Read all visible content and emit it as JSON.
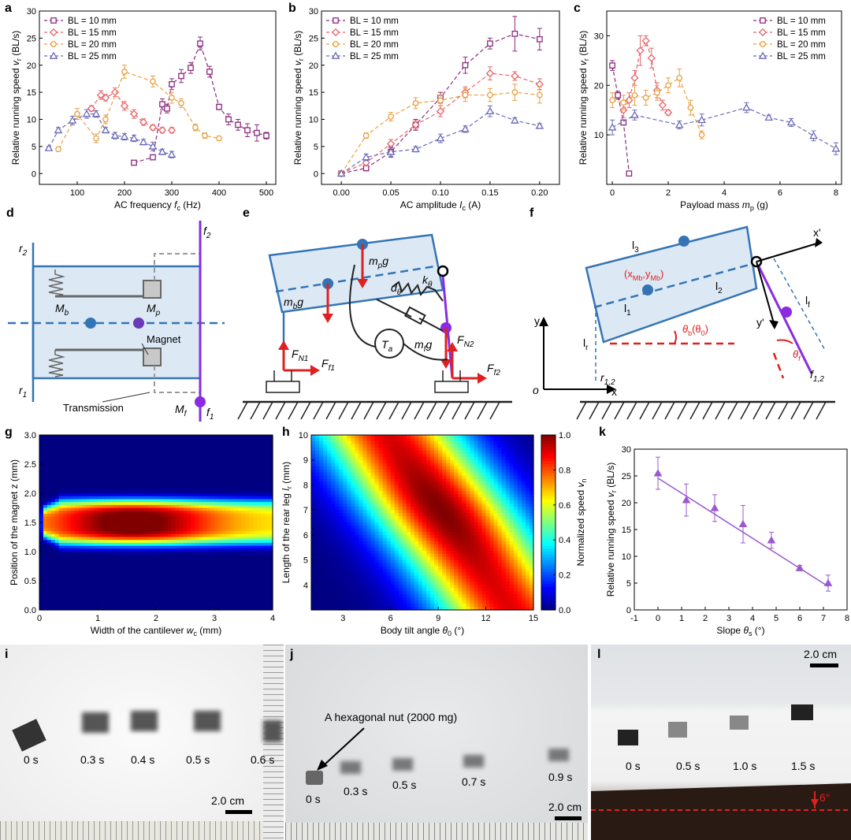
{
  "labels": {
    "a": "a",
    "b": "b",
    "c": "c",
    "d": "d",
    "e": "e",
    "f": "f",
    "g": "g",
    "h": "h",
    "k": "k",
    "i": "i",
    "j": "j",
    "l": "l"
  },
  "colors": {
    "bl10": "#8B2A7E",
    "bl15": "#E8646A",
    "bl20": "#E8A040",
    "bl25": "#6A6AB8",
    "blue": "#3474B4",
    "purple": "#8A2BE2",
    "red": "#E02020",
    "fill": "#dce9f5",
    "line_k": "#9B59D0"
  },
  "chart_data": [
    {
      "id": "a",
      "type": "line",
      "ylabel_main": "Relative running speed ",
      "ylabel_sym": "v",
      "ylabel_sub": "r",
      "ylabel_unit": " (BL/s)",
      "xlabel_main": "AC frequency ",
      "xlabel_sym": "f",
      "xlabel_sub": "c",
      "xlabel_unit": "  (Hz)",
      "xlim": [
        20,
        520
      ],
      "ylim": [
        -2,
        30
      ],
      "xticks": [
        100,
        200,
        300,
        400,
        500
      ],
      "yticks": [
        0,
        5,
        10,
        15,
        20,
        25,
        30
      ],
      "legend": "top-left",
      "series": [
        {
          "name": "BL = 10 mm",
          "color": "#8B2A7E",
          "marker": "square",
          "x": [
            220,
            260,
            280,
            290,
            300,
            320,
            340,
            360,
            380,
            400,
            420,
            440,
            460,
            480,
            500
          ],
          "y": [
            2,
            3,
            12.8,
            12,
            16.5,
            18,
            19.5,
            24,
            18.8,
            12.3,
            10,
            9,
            8,
            7.5,
            7
          ],
          "err": [
            0.3,
            0.4,
            1.0,
            0.8,
            1.0,
            1.2,
            1.0,
            1.2,
            1.0,
            0.5,
            1.0,
            1.0,
            1.2,
            1.5,
            0.6
          ]
        },
        {
          "name": "BL = 15 mm",
          "color": "#E8646A",
          "marker": "diamond",
          "x": [
            130,
            150,
            160,
            180,
            200,
            220,
            240,
            260,
            280,
            300
          ],
          "y": [
            12,
            14.5,
            14,
            15,
            12.5,
            11,
            9.5,
            8.5,
            8,
            8
          ],
          "err": [
            0.5,
            0.8,
            0.6,
            0.8,
            0.8,
            0.8,
            0.6,
            0.5,
            0.5,
            0.5
          ]
        },
        {
          "name": "BL = 20 mm",
          "color": "#E8A040",
          "marker": "circle",
          "x": [
            60,
            100,
            140,
            160,
            200,
            260,
            300,
            320,
            350,
            370,
            400
          ],
          "y": [
            4.5,
            11,
            6.5,
            10,
            18.8,
            17,
            14,
            13,
            8.5,
            7,
            6.5
          ],
          "err": [
            0.4,
            1.0,
            0.8,
            0.8,
            1.2,
            1.0,
            1.0,
            0.8,
            0.6,
            0.5,
            0.4
          ]
        },
        {
          "name": "BL = 25 mm",
          "color": "#6A6AB8",
          "marker": "triangle",
          "x": [
            40,
            60,
            90,
            120,
            140,
            160,
            180,
            200,
            220,
            240,
            260,
            280,
            300
          ],
          "y": [
            4.7,
            8,
            9.8,
            11,
            11,
            8,
            7,
            6.8,
            6.5,
            5.8,
            5,
            4,
            3.5
          ],
          "err": [
            0.3,
            0.5,
            0.8,
            0.8,
            0.6,
            0.5,
            0.6,
            0.6,
            0.6,
            0.5,
            0.8,
            0.5,
            0.6
          ]
        }
      ]
    },
    {
      "id": "b",
      "type": "line",
      "ylabel_main": "Relative running speed ",
      "ylabel_sym": "v",
      "ylabel_sub": "r",
      "ylabel_unit": " (BL/s)",
      "xlabel_main": "AC amplitude ",
      "xlabel_sym": "I",
      "xlabel_sub": "c",
      "xlabel_unit": " (A)",
      "xlim": [
        -0.02,
        0.22
      ],
      "ylim": [
        -2,
        30
      ],
      "xticks": [
        0.0,
        0.05,
        0.1,
        0.15,
        0.2
      ],
      "xtick_labels": [
        "0.00",
        "0.05",
        "0.10",
        "0.15",
        "0.20"
      ],
      "yticks": [
        0,
        5,
        10,
        15,
        20,
        25,
        30
      ],
      "legend": "top-left",
      "series": [
        {
          "name": "BL = 10 mm",
          "color": "#8B2A7E",
          "marker": "square",
          "x": [
            0,
            0.025,
            0.05,
            0.075,
            0.1,
            0.125,
            0.15,
            0.175,
            0.2
          ],
          "y": [
            0,
            1,
            4,
            9,
            14,
            20,
            24,
            25.8,
            24.8
          ],
          "err": [
            0.2,
            0.5,
            1.0,
            1.0,
            1.0,
            1.5,
            1.0,
            3.2,
            2.0
          ]
        },
        {
          "name": "BL = 15 mm",
          "color": "#E8646A",
          "marker": "diamond",
          "x": [
            0,
            0.025,
            0.05,
            0.075,
            0.1,
            0.125,
            0.15,
            0.175,
            0.2
          ],
          "y": [
            0,
            2,
            5.5,
            9,
            11.5,
            15,
            18.5,
            18,
            16.5
          ],
          "err": [
            0.2,
            0.5,
            0.8,
            0.8,
            1.0,
            1.0,
            1.2,
            0.8,
            1.0
          ]
        },
        {
          "name": "BL = 20 mm",
          "color": "#E8A040",
          "marker": "circle",
          "x": [
            0,
            0.025,
            0.05,
            0.075,
            0.1,
            0.125,
            0.15,
            0.175,
            0.2
          ],
          "y": [
            0,
            7,
            10.5,
            13,
            13.5,
            14.5,
            14.5,
            15,
            14.5
          ],
          "err": [
            0.2,
            0.5,
            0.8,
            1.0,
            1.0,
            1.2,
            1.2,
            1.5,
            1.5
          ]
        },
        {
          "name": "BL = 25 mm",
          "color": "#6A6AB8",
          "marker": "triangle",
          "x": [
            0,
            0.025,
            0.05,
            0.075,
            0.1,
            0.125,
            0.15,
            0.175,
            0.2
          ],
          "y": [
            0,
            3,
            4,
            4.5,
            6.5,
            8.2,
            11.5,
            9.8,
            8.8
          ],
          "err": [
            0.2,
            0.6,
            0.8,
            0.5,
            0.8,
            0.6,
            1.0,
            0.5,
            0.4
          ]
        }
      ]
    },
    {
      "id": "c",
      "type": "line",
      "ylabel_main": "Relative running speed ",
      "ylabel_sym": "v",
      "ylabel_sub": "r",
      "ylabel_unit": " (BL/s)",
      "xlabel_main": "Payload mass ",
      "xlabel_sym": "m",
      "xlabel_sub": "p",
      "xlabel_unit": " (g)",
      "xlim": [
        -0.2,
        8.2
      ],
      "ylim": [
        0,
        35
      ],
      "xticks": [
        0,
        2,
        4,
        6,
        8
      ],
      "yticks": [
        10,
        20,
        30
      ],
      "legend": "top-right",
      "series": [
        {
          "name": "BL = 10 mm",
          "color": "#8B2A7E",
          "marker": "square",
          "x": [
            0,
            0.2,
            0.4,
            0.6
          ],
          "y": [
            24,
            18,
            12.5,
            2.2
          ],
          "err": [
            1.0,
            0.8,
            0.5,
            0.2
          ]
        },
        {
          "name": "BL = 15 mm",
          "color": "#E8646A",
          "marker": "diamond",
          "x": [
            0.4,
            0.6,
            0.8,
            1.0,
            1.2,
            1.4,
            1.6,
            1.8,
            2.0
          ],
          "y": [
            15,
            17,
            21.5,
            27,
            29,
            25.5,
            19,
            16,
            14.5
          ],
          "err": [
            1.5,
            1.5,
            1.5,
            3.0,
            1.0,
            2.0,
            1.5,
            1.0,
            0.5
          ]
        },
        {
          "name": "BL = 20 mm",
          "color": "#E8A040",
          "marker": "circle",
          "x": [
            0,
            0.4,
            0.8,
            1.2,
            1.6,
            2.0,
            2.4,
            2.8,
            3.2
          ],
          "y": [
            17,
            16.5,
            18,
            17.5,
            18.5,
            20,
            21.5,
            15.5,
            10
          ],
          "err": [
            1.5,
            1.5,
            2.0,
            1.5,
            1.5,
            1.5,
            1.8,
            1.5,
            0.8
          ]
        },
        {
          "name": "BL = 25 mm",
          "color": "#6A6AB8",
          "marker": "triangle",
          "x": [
            0,
            0.8,
            2.4,
            3.2,
            4.8,
            5.6,
            6.4,
            7.2,
            8.0
          ],
          "y": [
            11.5,
            14,
            12,
            13,
            15.5,
            13.5,
            12.5,
            9.8,
            7.2
          ],
          "err": [
            1.5,
            1.0,
            0.8,
            1.2,
            1.0,
            0.5,
            0.8,
            1.0,
            1.2
          ]
        }
      ]
    },
    {
      "id": "g",
      "type": "heatmap",
      "xlabel_main": "Width of the cantilever ",
      "xlabel_sym": "w",
      "xlabel_sub": "c",
      "xlabel_unit": " (mm)",
      "ylabel": "Position of the magnet z (mm)",
      "xlim": [
        0,
        4
      ],
      "ylim": [
        0,
        3
      ],
      "xticks": [
        0,
        1,
        2,
        3,
        4
      ],
      "yticks": [
        0.0,
        0.5,
        1.0,
        1.5,
        2.0,
        2.5,
        3.0
      ],
      "ytick_labels": [
        "0.0",
        "0.5",
        "1.0",
        "1.5",
        "2.0",
        "2.5",
        "3.0"
      ]
    },
    {
      "id": "h",
      "type": "heatmap",
      "xlabel_main": "Body tilt angle ",
      "xlabel_sym": "θ",
      "xlabel_sub": "0",
      "xlabel_unit": " (°)",
      "ylabel_main": "Length of the rear leg  ",
      "ylabel_sym": "l",
      "ylabel_sub": "r",
      "ylabel_unit": " (mm)",
      "xlim": [
        1,
        15
      ],
      "ylim": [
        3,
        10
      ],
      "xticks": [
        3,
        6,
        9,
        12,
        15
      ],
      "yticks": [
        4,
        5,
        6,
        7,
        8,
        9,
        10
      ],
      "colorbar": {
        "label_main": "Normalized speed ",
        "label_sym": "v",
        "label_sub": "n",
        "ticks": [
          0.0,
          0.2,
          0.4,
          0.6,
          0.8,
          1.0
        ],
        "tick_labels": [
          "0.0",
          "0.2",
          "0.4",
          "0.6",
          "0.8",
          "1.0"
        ]
      }
    },
    {
      "id": "k",
      "type": "line",
      "ylabel_main": "Relative running speed ",
      "ylabel_sym": "v",
      "ylabel_sub": "r",
      "ylabel_unit": " (BL/s)",
      "xlabel_main": "Slope ",
      "xlabel_sym": "θ",
      "xlabel_sub": "s",
      "xlabel_unit": " (°)",
      "xlim": [
        -1,
        8
      ],
      "ylim": [
        0,
        30
      ],
      "xticks": [
        -1,
        0,
        1,
        2,
        3,
        4,
        5,
        6,
        7,
        8
      ],
      "yticks": [
        0,
        5,
        10,
        15,
        20,
        25,
        30
      ],
      "series": [
        {
          "name": "",
          "color": "#9B59D0",
          "marker": "triangle",
          "x": [
            0,
            1.2,
            2.4,
            3.6,
            4.8,
            6.0,
            7.2
          ],
          "y": [
            25.5,
            20.5,
            19,
            16,
            13,
            7.8,
            5
          ],
          "err": [
            3,
            3,
            2.5,
            3.5,
            1.5,
            0.5,
            1.5
          ],
          "fit": [
            [
              0,
              24.6
            ],
            [
              7.2,
              4.4
            ]
          ]
        }
      ]
    }
  ],
  "diagram_d": {
    "f2": "f",
    "f2_sub": "2",
    "r2": "r",
    "r2_sub": "2",
    "r1": "r",
    "r1_sub": "1",
    "Mb": "M",
    "Mb_sub": "b",
    "Mp": "M",
    "Mp_sub": "p",
    "Mf": "M",
    "Mf_sub": "f",
    "f1": "f",
    "f1_sub": "1",
    "magnet": "Magnet",
    "transmission": "Transmission"
  },
  "diagram_e": {
    "mpg": "m",
    "mpg_sub": "p",
    "mpg_g": "g",
    "mbg": "m",
    "mbg_sub": "b",
    "mbg_g": "g",
    "mfg": "m",
    "mfg_sub": "f",
    "mfg_g": "g",
    "ktheta": "k",
    "ktheta_sub": "θ",
    "dtheta": "d",
    "dtheta_sub": "θ",
    "Ta": "T",
    "Ta_sub": "a",
    "FN1": "F",
    "FN1_sub": "N1",
    "Ff1": "F",
    "Ff1_sub": "f1",
    "FN2": "F",
    "FN2_sub": "N2",
    "Ff2": "F",
    "Ff2_sub": "f2"
  },
  "diagram_f": {
    "l3": "l",
    "l3_sub": "3",
    "xMb": "(x",
    "xMb_sub": "Mb",
    "yMb": ",y",
    "yMb_sub": "Mb",
    "close": ")",
    "l1": "l",
    "l1_sub": "1",
    "l2": "l",
    "l2_sub": "2",
    "lf": "l",
    "lf_sub": "f",
    "lr": "l",
    "lr_sub": "r",
    "theta_b": "θ",
    "theta_b_sub": "b",
    "theta_0": "(θ",
    "theta_0_sub": "0",
    "theta_0_close": ")",
    "theta_f": "θ",
    "theta_f_sub": "f",
    "y": "y",
    "o": "o",
    "x": "x",
    "xp": "x'",
    "yp": "y'",
    "r12": "r",
    "r12_sub": "1,2",
    "f12": "f",
    "f12_sub": "1,2"
  },
  "photos": {
    "i": {
      "times": [
        "0 s",
        "0.3 s",
        "0.4 s",
        "0.5 s",
        "0.6 s"
      ],
      "scale": "2.0 cm"
    },
    "j": {
      "times": [
        "0 s",
        "0.3 s",
        "0.5 s",
        "0.7 s",
        "0.9 s"
      ],
      "scale": "2.0 cm",
      "annotation": "A hexagonal nut (2000 mg)"
    },
    "l": {
      "times": [
        "0 s",
        "0.5 s",
        "1.0 s",
        "1.5 s"
      ],
      "scale": "2.0 cm",
      "angle": "6°"
    }
  }
}
